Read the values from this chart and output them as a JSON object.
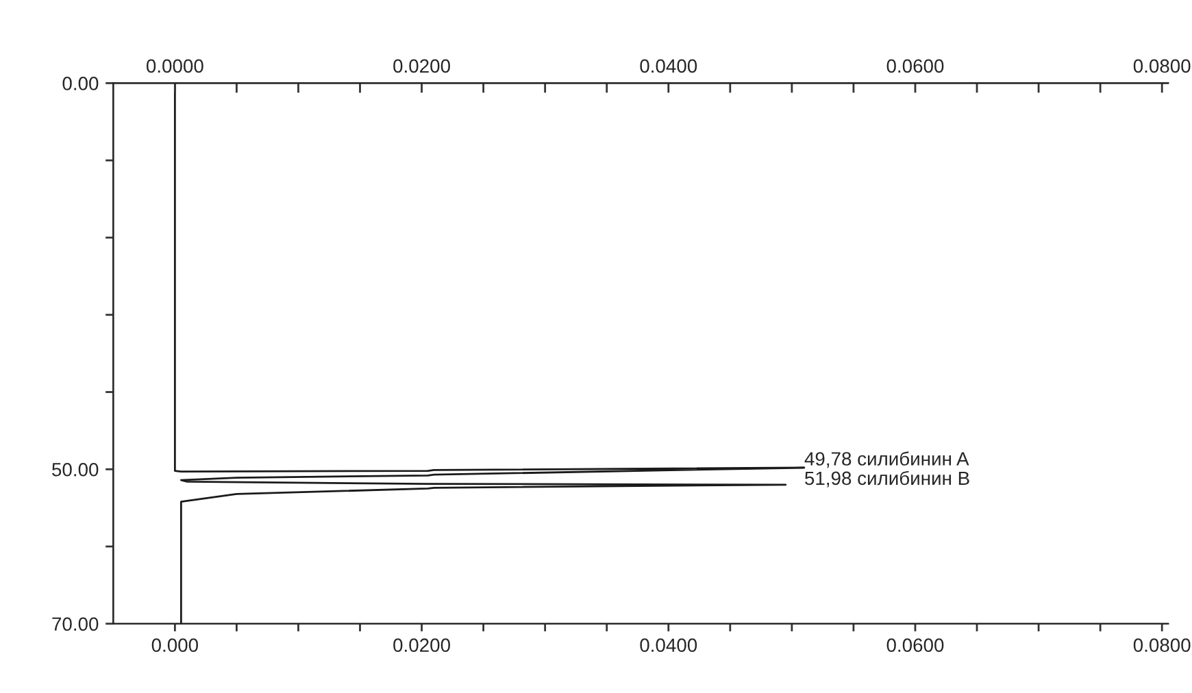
{
  "chart_data": {
    "type": "line",
    "series": [
      {
        "color": "#1a1a1a",
        "x": [
          0.0,
          0.0,
          0.0005,
          0.0205,
          0.021,
          0.051,
          0.021,
          0.0205,
          0.005,
          0.0005,
          0.001,
          0.0205,
          0.021,
          0.0495,
          0.021,
          0.0205,
          0.005,
          0.0005,
          0.0005
        ],
        "values": [
          0.0,
          50.2,
          50.3,
          50.2,
          50.1,
          49.8,
          50.7,
          50.8,
          51.1,
          51.4,
          51.6,
          51.9,
          51.9,
          52.0,
          52.4,
          52.5,
          53.2,
          54.2,
          70.0
        ]
      }
    ],
    "xlim": [
      -0.005,
      0.0805
    ],
    "xticks": [
      {
        "value": 0.0,
        "label": "0.000"
      },
      {
        "value": 0.005,
        "label": null
      },
      {
        "value": 0.01,
        "label": null
      },
      {
        "value": 0.015,
        "label": null
      },
      {
        "value": 0.02,
        "label": "0.0200"
      },
      {
        "value": 0.025,
        "label": null
      },
      {
        "value": 0.03,
        "label": null
      },
      {
        "value": 0.035,
        "label": null
      },
      {
        "value": 0.04,
        "label": "0.0400"
      },
      {
        "value": 0.045,
        "label": null
      },
      {
        "value": 0.05,
        "label": null
      },
      {
        "value": 0.055,
        "label": null
      },
      {
        "value": 0.06,
        "label": "0.0600"
      },
      {
        "value": 0.065,
        "label": null
      },
      {
        "value": 0.07,
        "label": null
      },
      {
        "value": 0.075,
        "label": null
      },
      {
        "value": 0.08,
        "label": "0.0800"
      }
    ],
    "x2lim": [
      -0.005,
      0.0805
    ],
    "x2ticks": [
      {
        "value": 0.0,
        "label": "0.0000"
      },
      {
        "value": 0.005,
        "label": null
      },
      {
        "value": 0.01,
        "label": null
      },
      {
        "value": 0.015,
        "label": null
      },
      {
        "value": 0.02,
        "label": "0.0200"
      },
      {
        "value": 0.025,
        "label": null
      },
      {
        "value": 0.03,
        "label": null
      },
      {
        "value": 0.035,
        "label": null
      },
      {
        "value": 0.04,
        "label": "0.0400"
      },
      {
        "value": 0.045,
        "label": null
      },
      {
        "value": 0.05,
        "label": null
      },
      {
        "value": 0.055,
        "label": null
      },
      {
        "value": 0.06,
        "label": "0.0600"
      },
      {
        "value": 0.065,
        "label": null
      },
      {
        "value": 0.07,
        "label": null
      },
      {
        "value": 0.075,
        "label": null
      },
      {
        "value": 0.08,
        "label": "0.0800"
      }
    ],
    "ylim": [
      70,
      0
    ],
    "yticks": [
      {
        "value": 0,
        "label": "0.00"
      },
      {
        "value": 10,
        "label": null
      },
      {
        "value": 20,
        "label": null
      },
      {
        "value": 30,
        "label": null
      },
      {
        "value": 40,
        "label": null
      },
      {
        "value": 50,
        "label": "50.00"
      },
      {
        "value": 60,
        "label": null
      },
      {
        "value": 70,
        "label": "70.00"
      }
    ],
    "annotations": [
      "49,78 силибинин A",
      "51,98 силибинин B"
    ],
    "grid": false,
    "legend": false
  }
}
